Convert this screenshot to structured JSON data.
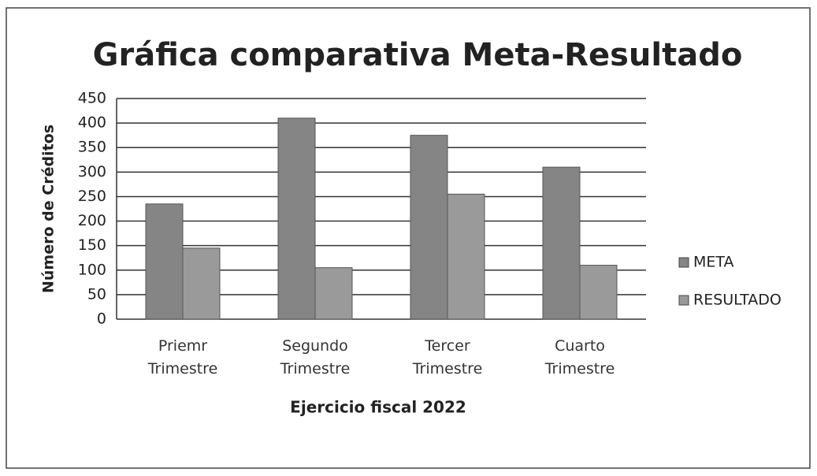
{
  "chart_data": {
    "type": "bar",
    "title": "Gráfica comparativa Meta-Resultado",
    "y_label": "Número de Créditos",
    "x_label": "Ejercicio fiscal 2022",
    "categories": [
      "Priemr Trimestre",
      "Segundo Trimestre",
      "Tercer Trimestre",
      "Cuarto Trimestre"
    ],
    "series": [
      {
        "name": "META",
        "color": "#858585",
        "values": [
          235,
          410,
          375,
          310
        ]
      },
      {
        "name": "RESULTADO",
        "color": "#9a9a9a",
        "values": [
          145,
          105,
          255,
          110
        ]
      }
    ],
    "ylim": [
      0,
      450
    ],
    "yticks": [
      0,
      50,
      100,
      150,
      200,
      250,
      300,
      350,
      400,
      450
    ],
    "grid": true,
    "legend": "right"
  }
}
